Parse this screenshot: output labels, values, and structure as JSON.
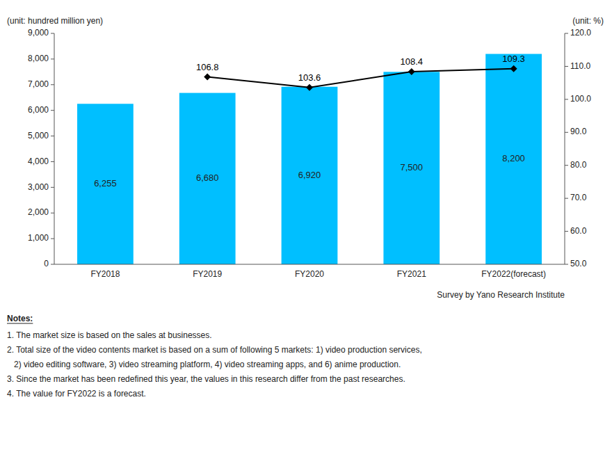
{
  "chart_data": {
    "type": "bar",
    "categories": [
      "FY2018",
      "FY2019",
      "FY2020",
      "FY2021",
      "FY2022(forecast)"
    ],
    "series": [
      {
        "type": "bar",
        "color": "#00BFFF",
        "data_labels": true,
        "values": [
          6255,
          6680,
          6920,
          7500,
          8200
        ],
        "value_labels": [
          "6,255",
          "6,680",
          "6,920",
          "7,500",
          "8,200"
        ]
      },
      {
        "type": "line",
        "axis": "y2",
        "color": "#000000",
        "marker": "diamond",
        "line_style": "solid",
        "data_labels": true,
        "values": [
          null,
          106.8,
          103.6,
          108.4,
          109.3
        ]
      }
    ],
    "y_label": "(unit: hundred million yen)",
    "y2_label": "(unit: %)",
    "ylim": [
      0,
      9000
    ],
    "yticks": [
      0,
      {
        "value": 1000,
        "label": "1,000"
      },
      {
        "value": 2000,
        "label": "2,000"
      },
      {
        "value": 3000,
        "label": "3,000"
      },
      {
        "value": 4000,
        "label": "4,000"
      },
      {
        "value": 5000,
        "label": "5,000"
      },
      {
        "value": 6000,
        "label": "6,000"
      },
      {
        "value": 7000,
        "label": "7,000"
      },
      {
        "value": 8000,
        "label": "8,000"
      },
      {
        "value": 9000,
        "label": "9,000"
      }
    ],
    "y2lim": [
      50.0,
      120.0
    ],
    "y2ticks": [
      {
        "value": 50,
        "label": "50.0"
      },
      {
        "value": 60,
        "label": "60.0"
      },
      {
        "value": 70,
        "label": "70.0"
      },
      {
        "value": 80,
        "label": "80.0"
      },
      {
        "value": 90,
        "label": "90.0"
      },
      {
        "value": 100,
        "label": "100.0"
      },
      {
        "value": 110,
        "label": "110.0"
      },
      {
        "value": 120,
        "label": "120.0"
      }
    ],
    "grid": false,
    "source": "Survey by Yano Research Institute",
    "notes_title": "Notes:",
    "notes": [
      "1. The market size is based on the sales at businesses.",
      "2. Total size of the video contents market is based on a sum of following 5 markets: 1) video production services,",
      "   2) video editing software, 3) video streaming platform, 4) video streaming apps, and 6) anime production.",
      "3. Since the market has been redefined this year, the values in this research differ from the past researches.",
      "4. The value for FY2022 is a forecast."
    ]
  }
}
